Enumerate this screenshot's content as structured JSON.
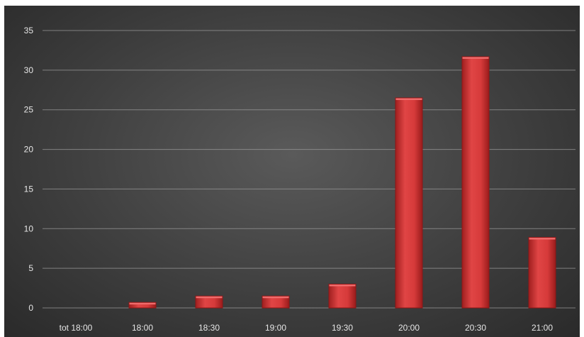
{
  "chart_data": {
    "type": "bar",
    "title": "",
    "xlabel": "",
    "ylabel": "",
    "categories": [
      "tot 18:00",
      "18:00",
      "18:30",
      "19:00",
      "19:30",
      "20:00",
      "20:30",
      "21:00"
    ],
    "values": [
      0,
      0.7,
      1.5,
      1.5,
      3,
      26.5,
      31.7,
      8.9
    ],
    "ylim": [
      0,
      35
    ],
    "yticks": [
      "0",
      "5",
      "10",
      "15",
      "20",
      "25",
      "30",
      "35"
    ],
    "grid": true,
    "legend": "none",
    "colors": {
      "bar": "#d63a3a",
      "bar_dark": "#8e1616",
      "bar_light": "#ef6b6b",
      "gridline": "#9a9a9a",
      "text": "#e6e6e6"
    }
  }
}
